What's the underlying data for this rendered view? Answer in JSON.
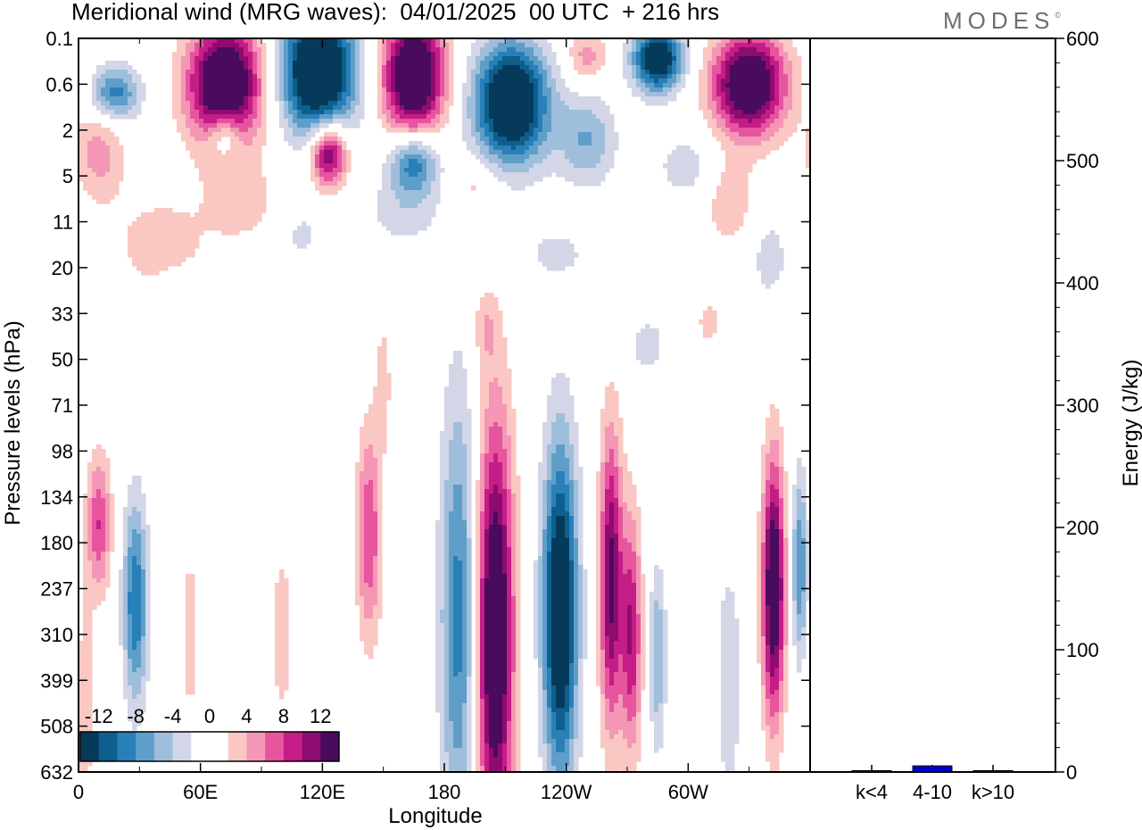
{
  "title": "Meridional wind (MRG waves):  04/01/2025  00 UTC  + 216 hrs",
  "logo": "MODES",
  "logo_mark": "©",
  "chart_data": [
    {
      "type": "heatmap",
      "title": "Meridional wind (MRG waves):  04/01/2025  00 UTC  + 216 hrs",
      "xlabel": "Longitude",
      "ylabel": "Pressure levels (hPa)",
      "x_ticks": [
        "0",
        "60E",
        "120E",
        "180",
        "120W",
        "60W"
      ],
      "y_ticks": [
        "0.1",
        "0.6",
        "2",
        "5",
        "11",
        "20",
        "33",
        "50",
        "71",
        "98",
        "134",
        "180",
        "237",
        "310",
        "399",
        "508",
        "632"
      ],
      "colorbar": {
        "labels": [
          "-12",
          "-8",
          "-4",
          "0",
          "4",
          "8",
          "12"
        ],
        "colors": [
          "#053a5a",
          "#0f5f8e",
          "#2980b8",
          "#5f9ec8",
          "#9fbedc",
          "#d2d6e7",
          "#ffffff",
          "#ffffff",
          "#fac7c2",
          "#f497b6",
          "#e6559e",
          "#c51d87",
          "#8d0c6f",
          "#4a0a5e"
        ]
      },
      "features": [
        {
          "lon_range": [
            195,
            215
          ],
          "levels": "98-632",
          "sign": "positive",
          "peak": 14
        },
        {
          "lon_range": [
            228,
            246
          ],
          "levels": "134-508",
          "sign": "negative",
          "peak": -14
        },
        {
          "lon_range": [
            178,
            196
          ],
          "levels": "98-632",
          "sign": "negative",
          "peak": -8
        },
        {
          "lon_range": [
            258,
            268
          ],
          "levels": "98-399",
          "sign": "positive",
          "peak": 14
        },
        {
          "lon_range": [
            336,
            348
          ],
          "levels": "134-399",
          "sign": "positive",
          "peak": 14
        },
        {
          "lon_range": [
            20,
            35
          ],
          "levels": "134-399",
          "sign": "negative",
          "peak": -8
        },
        {
          "lon_range": [
            45,
            100
          ],
          "levels": "0.1-2",
          "sign": "positive",
          "peak": 14
        },
        {
          "lon_range": [
            95,
            145
          ],
          "levels": "0.1-2",
          "sign": "negative",
          "peak": -14
        },
        {
          "lon_range": [
            145,
            185
          ],
          "levels": "0.1-2",
          "sign": "positive",
          "peak": 14
        },
        {
          "lon_range": [
            190,
            245
          ],
          "levels": "0.6-5",
          "sign": "negative",
          "peak": -14
        },
        {
          "lon_range": [
            275,
            300
          ],
          "levels": "0.1-0.6",
          "sign": "negative",
          "peak": -14
        },
        {
          "lon_range": [
            310,
            350
          ],
          "levels": "0.1-2",
          "sign": "positive",
          "peak": 14
        }
      ]
    },
    {
      "type": "bar",
      "categories": [
        "k<4",
        "4-10",
        "k>10"
      ],
      "values": [
        0.5,
        5,
        0.3
      ],
      "ylabel": "Energy (J/kg)",
      "ylim": [
        0,
        600
      ],
      "y_ticks": [
        "0",
        "100",
        "200",
        "300",
        "400",
        "500",
        "600"
      ],
      "bar_color": "#0000cc"
    }
  ]
}
